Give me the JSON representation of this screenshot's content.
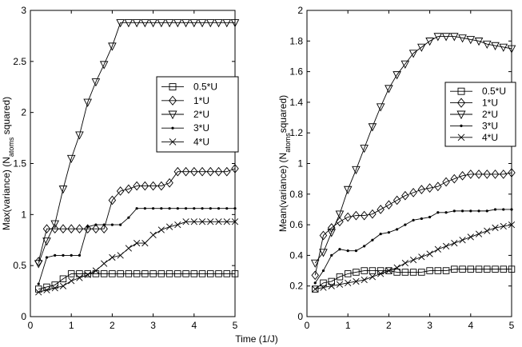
{
  "shared_xlabel": "Time (1/J)",
  "chart_data": [
    {
      "type": "line",
      "title": "",
      "xlabel": "",
      "ylabel": {
        "pre": "Max(variance) (N",
        "sub": "atoms",
        "post": " squared)"
      },
      "xlim": [
        0,
        5
      ],
      "ylim": [
        0,
        3
      ],
      "xticks": [
        0,
        1,
        2,
        3,
        4,
        5
      ],
      "yticks": [
        0,
        0.5,
        1,
        1.5,
        2,
        2.5,
        3
      ],
      "ytick_labels": [
        "0",
        "0.5",
        "1",
        "1.5",
        "2",
        "2.5",
        "3"
      ],
      "legend_position": "right-middle",
      "x": [
        0.2,
        0.4,
        0.6,
        0.8,
        1.0,
        1.2,
        1.4,
        1.6,
        1.8,
        2.0,
        2.2,
        2.4,
        2.6,
        2.8,
        3.0,
        3.2,
        3.4,
        3.6,
        3.8,
        4.0,
        4.2,
        4.4,
        4.6,
        4.8,
        5.0
      ],
      "series": [
        {
          "name": "0.5*U",
          "marker": "square",
          "values": [
            0.27,
            0.29,
            0.31,
            0.37,
            0.42,
            0.42,
            0.42,
            0.42,
            0.42,
            0.42,
            0.42,
            0.42,
            0.42,
            0.42,
            0.42,
            0.42,
            0.42,
            0.42,
            0.42,
            0.42,
            0.42,
            0.42,
            0.42,
            0.42,
            0.42
          ]
        },
        {
          "name": "1*U",
          "marker": "diamond",
          "values": [
            0.54,
            0.86,
            0.86,
            0.86,
            0.86,
            0.86,
            0.86,
            0.86,
            0.86,
            1.14,
            1.23,
            1.25,
            1.28,
            1.28,
            1.28,
            1.28,
            1.31,
            1.42,
            1.42,
            1.42,
            1.42,
            1.42,
            1.42,
            1.42,
            1.45
          ]
        },
        {
          "name": "2*U",
          "marker": "triangle-down",
          "values": [
            0.52,
            0.74,
            0.91,
            1.25,
            1.55,
            1.78,
            2.1,
            2.3,
            2.47,
            2.65,
            2.88,
            2.88,
            2.88,
            2.88,
            2.88,
            2.88,
            2.88,
            2.88,
            2.88,
            2.88,
            2.88,
            2.88,
            2.88,
            2.88,
            2.88
          ]
        },
        {
          "name": "3*U",
          "marker": "dot",
          "values": [
            0.32,
            0.58,
            0.6,
            0.6,
            0.6,
            0.6,
            0.88,
            0.9,
            0.9,
            0.9,
            0.9,
            0.97,
            1.06,
            1.06,
            1.06,
            1.06,
            1.06,
            1.06,
            1.06,
            1.06,
            1.06,
            1.06,
            1.06,
            1.06,
            1.06
          ]
        },
        {
          "name": "4*U",
          "marker": "x",
          "values": [
            0.24,
            0.26,
            0.28,
            0.3,
            0.35,
            0.38,
            0.41,
            0.45,
            0.52,
            0.58,
            0.6,
            0.67,
            0.72,
            0.72,
            0.8,
            0.85,
            0.88,
            0.9,
            0.93,
            0.93,
            0.93,
            0.93,
            0.93,
            0.93,
            0.93
          ]
        }
      ]
    },
    {
      "type": "line",
      "title": "",
      "xlabel": "",
      "ylabel": {
        "pre": "Mean(variance) (N",
        "sub": "atoms",
        "post": "squared)"
      },
      "xlim": [
        0,
        5
      ],
      "ylim": [
        0,
        2
      ],
      "xticks": [
        0,
        1,
        2,
        3,
        4,
        5
      ],
      "yticks": [
        0,
        0.2,
        0.4,
        0.6,
        0.8,
        1,
        1.2,
        1.4,
        1.6,
        1.8,
        2
      ],
      "ytick_labels": [
        "0",
        "0.2",
        "0.4",
        "0.6",
        "0.8",
        "1",
        "1.2",
        "1.4",
        "1.6",
        "1.8",
        "2"
      ],
      "legend_position": "right-middle",
      "x": [
        0.2,
        0.4,
        0.6,
        0.8,
        1.0,
        1.2,
        1.4,
        1.6,
        1.8,
        2.0,
        2.2,
        2.4,
        2.6,
        2.8,
        3.0,
        3.2,
        3.4,
        3.6,
        3.8,
        4.0,
        4.2,
        4.4,
        4.6,
        4.8,
        5.0
      ],
      "series": [
        {
          "name": "0.5*U",
          "marker": "square",
          "values": [
            0.18,
            0.22,
            0.23,
            0.26,
            0.28,
            0.29,
            0.3,
            0.3,
            0.3,
            0.3,
            0.29,
            0.29,
            0.29,
            0.29,
            0.3,
            0.3,
            0.3,
            0.31,
            0.31,
            0.31,
            0.31,
            0.31,
            0.31,
            0.31,
            0.31
          ]
        },
        {
          "name": "1*U",
          "marker": "diamond",
          "values": [
            0.27,
            0.53,
            0.58,
            0.62,
            0.65,
            0.66,
            0.66,
            0.67,
            0.7,
            0.73,
            0.76,
            0.79,
            0.81,
            0.83,
            0.84,
            0.85,
            0.88,
            0.9,
            0.92,
            0.93,
            0.93,
            0.93,
            0.93,
            0.93,
            0.94
          ]
        },
        {
          "name": "2*U",
          "marker": "triangle-down",
          "values": [
            0.35,
            0.42,
            0.55,
            0.67,
            0.83,
            0.96,
            1.1,
            1.24,
            1.37,
            1.49,
            1.58,
            1.65,
            1.72,
            1.76,
            1.8,
            1.83,
            1.83,
            1.83,
            1.82,
            1.81,
            1.8,
            1.78,
            1.77,
            1.76,
            1.75
          ]
        },
        {
          "name": "3*U",
          "marker": "dot",
          "values": [
            0.22,
            0.3,
            0.4,
            0.44,
            0.43,
            0.43,
            0.46,
            0.5,
            0.54,
            0.55,
            0.57,
            0.6,
            0.63,
            0.64,
            0.65,
            0.68,
            0.68,
            0.69,
            0.69,
            0.69,
            0.69,
            0.69,
            0.7,
            0.7,
            0.7
          ]
        },
        {
          "name": "4*U",
          "marker": "x",
          "values": [
            0.18,
            0.19,
            0.2,
            0.21,
            0.22,
            0.23,
            0.24,
            0.26,
            0.28,
            0.3,
            0.32,
            0.35,
            0.37,
            0.39,
            0.41,
            0.44,
            0.46,
            0.48,
            0.5,
            0.52,
            0.54,
            0.56,
            0.58,
            0.59,
            0.6
          ]
        }
      ]
    }
  ]
}
